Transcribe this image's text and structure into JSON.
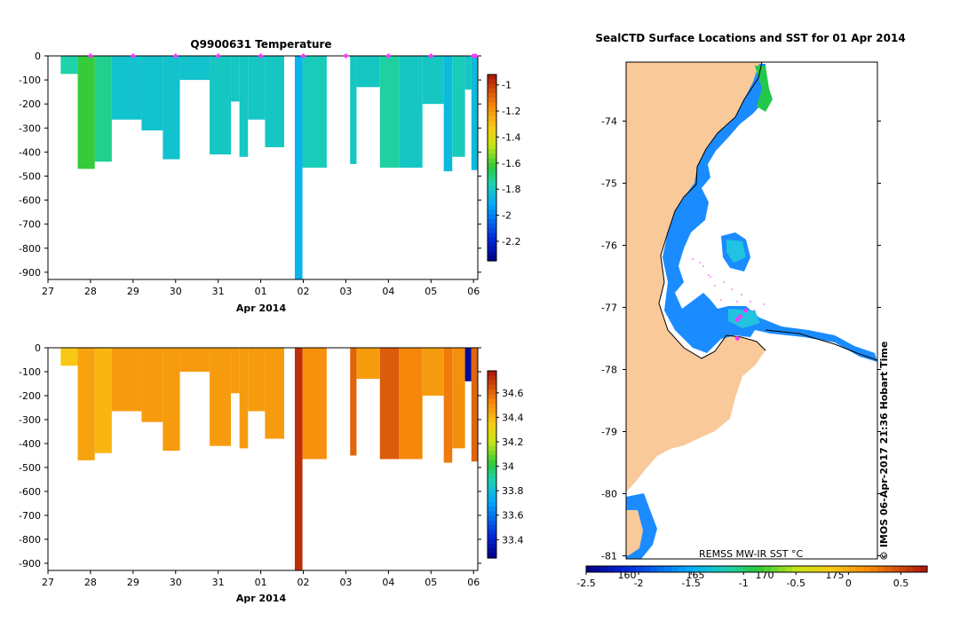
{
  "left_title": "Q9900631  Temperature",
  "right_title": "SealCTD Surface Locations and SST for 01 Apr 2014",
  "date_axis": {
    "ticks": [
      "27",
      "28",
      "29",
      "30",
      "31",
      "01",
      "02",
      "03",
      "04",
      "05",
      "06"
    ],
    "label": "Apr 2014"
  },
  "depth_axis": {
    "ticks": [
      "0",
      "-100",
      "-200",
      "-300",
      "-400",
      "-500",
      "-600",
      "-700",
      "-800",
      "-900"
    ]
  },
  "map_lat_ticks": [
    "-74",
    "-75",
    "-76",
    "-77",
    "-78",
    "-79",
    "-80",
    "-81"
  ],
  "map_lon_ticks": [
    "160",
    "165",
    "170",
    "175"
  ],
  "sst_label": "REMSS MW-IR SST °C",
  "sst_colorbar_ticks": [
    "-2.5",
    "-2",
    "-1.5",
    "-1",
    "-0.5",
    "0",
    "0.5"
  ],
  "temp_colorbar_ticks": [
    "-1",
    "-1.2",
    "-1.4",
    "-1.6",
    "-1.8",
    "-2",
    "-2.2"
  ],
  "sal_colorbar_ticks": [
    "34.6",
    "34.4",
    "34.2",
    "34",
    "33.8",
    "33.6",
    "33.4"
  ],
  "watermark": "© IMOS 06-Apr-2017 21:36 Hobart Time",
  "colors": {
    "land": "#f9c99a",
    "ocean": "#1a8cff",
    "profile_marker": "#ff33ff",
    "temp_main": "#1fd6a5",
    "sal_main": "#f5a20a"
  },
  "chart_data": [
    {
      "type": "heatmap",
      "title": "Q9900631  Temperature",
      "xlabel": "Apr 2014",
      "ylabel": "",
      "xlim": [
        27,
        37.1
      ],
      "ylim": [
        -930,
        0
      ],
      "color_range": [
        -2.35,
        -0.92
      ],
      "colorbar_ticks": [
        -1,
        -1.2,
        -1.4,
        -1.6,
        -1.8,
        -2,
        -2.2
      ],
      "profiles": [
        {
          "x0": 27.3,
          "x1": 27.7,
          "depth": 75,
          "value": -1.75
        },
        {
          "x0": 27.7,
          "x1": 28.1,
          "depth": 470,
          "value": -1.62
        },
        {
          "x0": 28.1,
          "x1": 28.5,
          "depth": 440,
          "value": -1.72
        },
        {
          "x0": 28.5,
          "x1": 29.2,
          "depth": 265,
          "value": -1.82
        },
        {
          "x0": 29.2,
          "x1": 29.7,
          "depth": 310,
          "value": -1.82
        },
        {
          "x0": 29.7,
          "x1": 30.1,
          "depth": 430,
          "value": -1.82
        },
        {
          "x0": 30.1,
          "x1": 30.8,
          "depth": 100,
          "value": -1.82
        },
        {
          "x0": 30.8,
          "x1": 31.3,
          "depth": 410,
          "value": -1.8
        },
        {
          "x0": 31.3,
          "x1": 31.5,
          "depth": 190,
          "value": -1.8
        },
        {
          "x0": 31.5,
          "x1": 31.7,
          "depth": 420,
          "value": -1.8
        },
        {
          "x0": 31.7,
          "x1": 32.1,
          "depth": 265,
          "value": -1.8
        },
        {
          "x0": 32.1,
          "x1": 32.55,
          "depth": 380,
          "value": -1.8
        },
        {
          "x0": 32.8,
          "x1": 32.98,
          "depth": 930,
          "value": -1.88
        },
        {
          "x0": 32.98,
          "x1": 33.55,
          "depth": 465,
          "value": -1.78
        },
        {
          "x0": 34.1,
          "x1": 34.25,
          "depth": 450,
          "value": -1.8
        },
        {
          "x0": 34.25,
          "x1": 34.8,
          "depth": 130,
          "value": -1.8
        },
        {
          "x0": 34.8,
          "x1": 35.25,
          "depth": 465,
          "value": -1.74
        },
        {
          "x0": 35.25,
          "x1": 35.8,
          "depth": 465,
          "value": -1.8
        },
        {
          "x0": 35.8,
          "x1": 36.3,
          "depth": 200,
          "value": -1.8
        },
        {
          "x0": 36.3,
          "x1": 36.5,
          "depth": 480,
          "value": -1.85
        },
        {
          "x0": 36.5,
          "x1": 36.8,
          "depth": 420,
          "value": -1.78
        },
        {
          "x0": 36.8,
          "x1": 36.95,
          "depth": 140,
          "value": -1.8
        },
        {
          "x0": 36.95,
          "x1": 37.1,
          "depth": 475,
          "value": -1.85
        }
      ],
      "markers_x": [
        28,
        29,
        30,
        31,
        32,
        33,
        34,
        35,
        36,
        37,
        37.05
      ]
    },
    {
      "type": "heatmap",
      "title": "",
      "xlabel": "Apr 2014",
      "ylabel": "",
      "xlim": [
        27,
        37.1
      ],
      "ylim": [
        -930,
        0
      ],
      "color_range": [
        33.25,
        34.78
      ],
      "colorbar_ticks": [
        34.6,
        34.4,
        34.2,
        34,
        33.8,
        33.6,
        33.4
      ],
      "profiles": [
        {
          "x0": 27.3,
          "x1": 27.7,
          "depth": 75,
          "value": 34.35
        },
        {
          "x0": 27.7,
          "x1": 28.1,
          "depth": 470,
          "value": 34.45
        },
        {
          "x0": 28.1,
          "x1": 28.5,
          "depth": 440,
          "value": 34.4
        },
        {
          "x0": 28.5,
          "x1": 29.2,
          "depth": 265,
          "value": 34.47
        },
        {
          "x0": 29.2,
          "x1": 29.7,
          "depth": 310,
          "value": 34.47
        },
        {
          "x0": 29.7,
          "x1": 30.1,
          "depth": 430,
          "value": 34.47
        },
        {
          "x0": 30.1,
          "x1": 30.8,
          "depth": 100,
          "value": 34.47
        },
        {
          "x0": 30.8,
          "x1": 31.3,
          "depth": 410,
          "value": 34.47
        },
        {
          "x0": 31.3,
          "x1": 31.5,
          "depth": 190,
          "value": 34.47
        },
        {
          "x0": 31.5,
          "x1": 31.7,
          "depth": 420,
          "value": 34.47
        },
        {
          "x0": 31.7,
          "x1": 32.1,
          "depth": 265,
          "value": 34.47
        },
        {
          "x0": 32.1,
          "x1": 32.55,
          "depth": 380,
          "value": 34.47
        },
        {
          "x0": 32.8,
          "x1": 32.98,
          "depth": 930,
          "value": 34.72
        },
        {
          "x0": 32.98,
          "x1": 33.55,
          "depth": 465,
          "value": 34.5
        },
        {
          "x0": 34.1,
          "x1": 34.25,
          "depth": 450,
          "value": 34.6
        },
        {
          "x0": 34.25,
          "x1": 34.8,
          "depth": 130,
          "value": 34.47
        },
        {
          "x0": 34.8,
          "x1": 35.25,
          "depth": 465,
          "value": 34.62
        },
        {
          "x0": 35.25,
          "x1": 35.8,
          "depth": 465,
          "value": 34.52
        },
        {
          "x0": 35.8,
          "x1": 36.3,
          "depth": 200,
          "value": 34.47
        },
        {
          "x0": 36.3,
          "x1": 36.5,
          "depth": 480,
          "value": 34.55
        },
        {
          "x0": 36.5,
          "x1": 36.8,
          "depth": 420,
          "value": 34.5
        },
        {
          "x0": 36.8,
          "x1": 36.95,
          "depth": 140,
          "value": 33.3
        },
        {
          "x0": 36.95,
          "x1": 37.1,
          "depth": 475,
          "value": 34.6
        }
      ]
    },
    {
      "type": "scatter",
      "title": "SealCTD Surface Locations and SST for 01 Apr 2014",
      "xlabel": "",
      "ylabel": "",
      "ylim": [
        -81.05,
        -73.05
      ],
      "xticks": [
        160,
        165,
        170,
        175
      ],
      "yticks": [
        -74,
        -75,
        -76,
        -77,
        -78,
        -79,
        -80,
        -81
      ],
      "color_range": [
        -2.5,
        0.75
      ],
      "colorbar_label": "REMSS MW-IR SST °C",
      "seal_positions": [
        {
          "lon": 168.6,
          "lat": -77.05
        },
        {
          "lon": 168.2,
          "lat": -77.15
        },
        {
          "lon": 168.0,
          "lat": -77.2
        },
        {
          "lon": 168.0,
          "lat": -77.5
        }
      ]
    }
  ]
}
